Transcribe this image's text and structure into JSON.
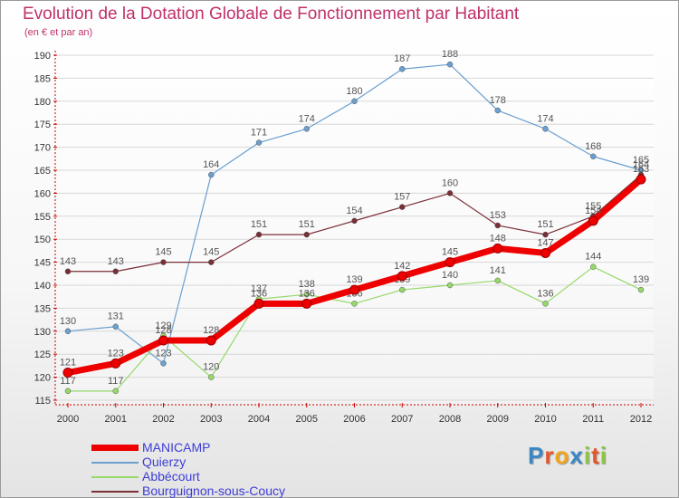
{
  "title": "Evolution de la Dotation Globale de Fonctionnement par Habitant",
  "subtitle": "(en € et par an)",
  "logo": "Proxiti",
  "colors": {
    "title": "#c0306a",
    "legend_text": "#3d3dd6",
    "axis": "#cc0000",
    "grid": "#d8d8d8"
  },
  "chart_data": {
    "type": "line",
    "categories": [
      "2000",
      "2001",
      "2002",
      "2003",
      "2004",
      "2005",
      "2006",
      "2007",
      "2008",
      "2009",
      "2010",
      "2011",
      "2012"
    ],
    "ylim": [
      115,
      190
    ],
    "yticks": [
      115,
      120,
      125,
      130,
      135,
      140,
      145,
      150,
      155,
      160,
      165,
      170,
      175,
      180,
      185,
      190
    ],
    "grid": true,
    "legend_position": "bottom-left",
    "series": [
      {
        "name": "MANICAMP",
        "color": "#ee0000",
        "thick": true,
        "values": [
          121,
          123,
          128,
          128,
          136,
          136,
          139,
          142,
          145,
          148,
          147,
          154,
          163
        ]
      },
      {
        "name": "Quierzy",
        "color": "#6a9fd0",
        "thick": false,
        "values": [
          130,
          131,
          123,
          164,
          171,
          174,
          180,
          187,
          188,
          178,
          174,
          168,
          165
        ]
      },
      {
        "name": "Abbécourt",
        "color": "#96d86a",
        "thick": false,
        "values": [
          117,
          117,
          129,
          120,
          137,
          138,
          136,
          139,
          140,
          141,
          136,
          144,
          139
        ]
      },
      {
        "name": "Bourguignon-sous-Coucy",
        "color": "#7a2e36",
        "thick": false,
        "values": [
          143,
          143,
          145,
          145,
          151,
          151,
          154,
          157,
          160,
          153,
          151,
          155,
          164
        ]
      }
    ]
  }
}
